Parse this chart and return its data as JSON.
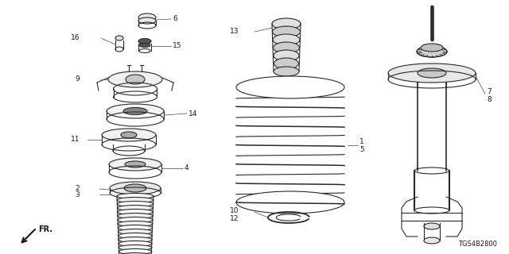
{
  "background_color": "#ffffff",
  "line_color": "#2a2a2a",
  "diagram_code": "TGS4B2800",
  "figsize": [
    6.4,
    3.2
  ],
  "dpi": 100
}
